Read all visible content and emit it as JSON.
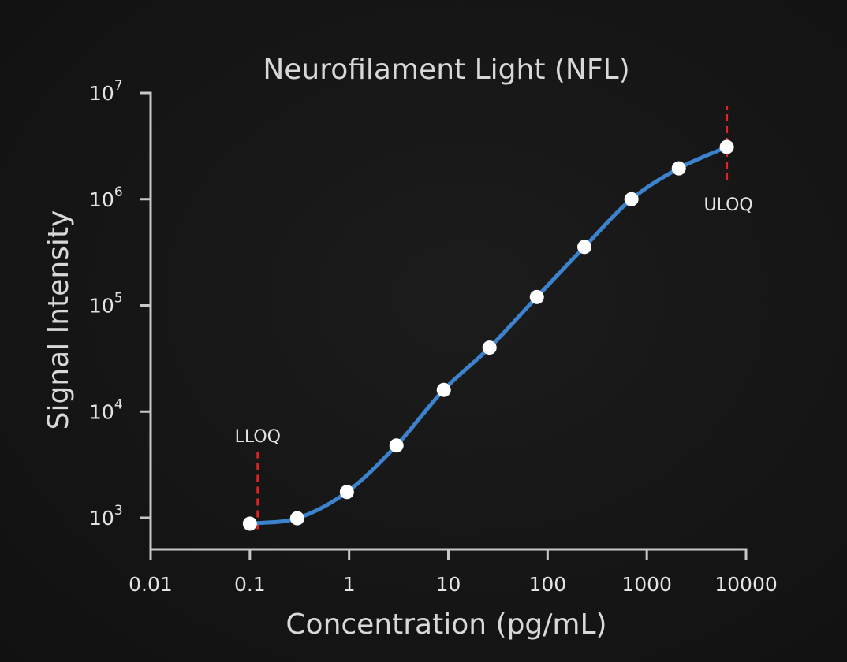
{
  "chart_data": {
    "type": "line",
    "title": "Neurofilament Light (NFL)",
    "xlabel": "Concentration (pg/mL)",
    "ylabel": "Signal Intensity",
    "x_scale": "log",
    "y_scale": "log",
    "xlim": [
      0.01,
      10000
    ],
    "ylim": [
      1000,
      10000000
    ],
    "x_ticks": [
      {
        "value": 0.01,
        "label": "0.01"
      },
      {
        "value": 0.1,
        "label": "0.1"
      },
      {
        "value": 1,
        "label": "1"
      },
      {
        "value": 10,
        "label": "10"
      },
      {
        "value": 100,
        "label": "100"
      },
      {
        "value": 1000,
        "label": "1000"
      },
      {
        "value": 10000,
        "label": "10000"
      }
    ],
    "y_ticks": [
      {
        "value": 1000,
        "base": "10",
        "exp": "3"
      },
      {
        "value": 10000,
        "base": "10",
        "exp": "4"
      },
      {
        "value": 100000,
        "base": "10",
        "exp": "5"
      },
      {
        "value": 1000000,
        "base": "10",
        "exp": "6"
      },
      {
        "value": 10000000,
        "base": "10",
        "exp": "7"
      }
    ],
    "grid": false,
    "series": [
      {
        "color": "#3d82cc",
        "point_color": "#ffffff",
        "points": [
          {
            "x": 0.1,
            "y": 880
          },
          {
            "x": 0.3,
            "y": 990
          },
          {
            "x": 0.95,
            "y": 1750
          },
          {
            "x": 3,
            "y": 4800
          },
          {
            "x": 9,
            "y": 16000
          },
          {
            "x": 26,
            "y": 40000
          },
          {
            "x": 78,
            "y": 120000
          },
          {
            "x": 235,
            "y": 355000
          },
          {
            "x": 700,
            "y": 1000000
          },
          {
            "x": 2100,
            "y": 1950000
          },
          {
            "x": 6400,
            "y": 3100000
          }
        ]
      }
    ],
    "annotations": [
      {
        "label": "LLOQ",
        "x": 0.12,
        "y_from": 780,
        "y_to": 4200,
        "label_position": "above",
        "color": "#e02424"
      },
      {
        "label": "ULOQ",
        "x": 6400,
        "y_from": 1500000,
        "y_to": 7500000,
        "label_position": "below-right",
        "color": "#e02424"
      }
    ]
  }
}
